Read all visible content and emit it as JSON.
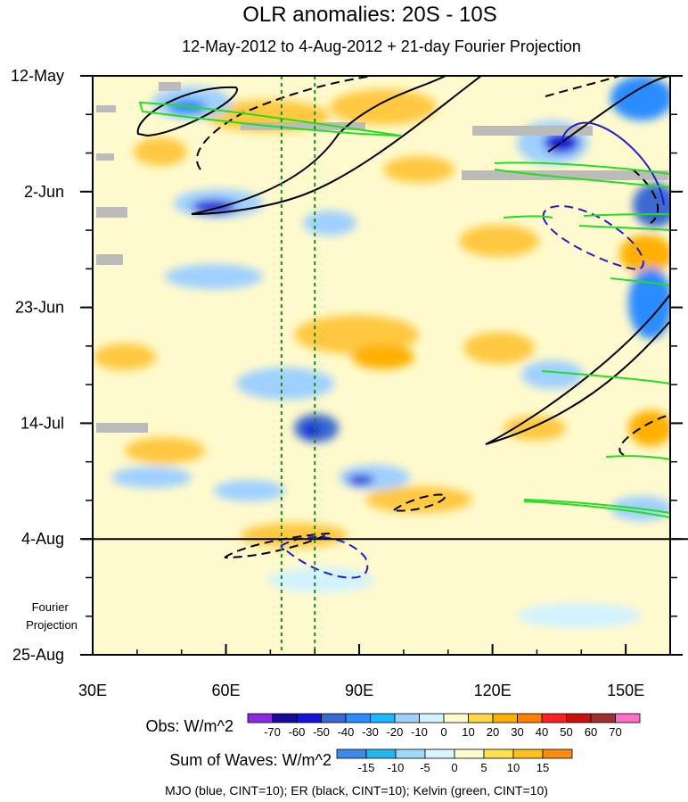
{
  "chart_data": {
    "type": "heatmap",
    "title": "OLR anomalies: 20S - 10S",
    "subtitle": "12-May-2012 to 4-Aug-2012 + 21-day Fourier Projection",
    "x_ticks": [
      {
        "label": "30E",
        "lon": 30
      },
      {
        "label": "60E",
        "lon": 60
      },
      {
        "label": "90E",
        "lon": 90
      },
      {
        "label": "120E",
        "lon": 120
      },
      {
        "label": "150E",
        "lon": 150
      }
    ],
    "xlim": [
      30,
      160
    ],
    "y_ticks": [
      {
        "label": "12-May",
        "day": 0
      },
      {
        "label": "2-Jun",
        "day": 21
      },
      {
        "label": "23-Jun",
        "day": 42
      },
      {
        "label": "14-Jul",
        "day": 63
      },
      {
        "label": "4-Aug",
        "day": 84
      },
      {
        "label": "25-Aug",
        "day": 105
      }
    ],
    "ylim_days": [
      0,
      105
    ],
    "projection_start_day": 84,
    "projection_label": [
      "Fourier",
      "Projection"
    ],
    "reference_lons": [
      72.5,
      80
    ],
    "obs_colorbar": {
      "label": "Obs: W/m^2",
      "levels": [
        "-70",
        "-60",
        "-50",
        "-40",
        "-30",
        "-20",
        "-10",
        "0",
        "10",
        "20",
        "30",
        "40",
        "50",
        "60",
        "70"
      ],
      "colors": [
        "#8a2be2",
        "#1a0a9a",
        "#1414d8",
        "#3a6ad0",
        "#2a8cff",
        "#19b8ff",
        "#9fd0ff",
        "#d2f2ff",
        "#fffacd",
        "#ffd84a",
        "#ffb000",
        "#ff8000",
        "#ff2020",
        "#cc1010",
        "#a03030",
        "#ff6ec7"
      ]
    },
    "waves_colorbar": {
      "label": "Sum of Waves: W/m^2",
      "levels": [
        "-15",
        "-10",
        "-5",
        "0",
        "5",
        "10",
        "15"
      ],
      "colors": [
        "#3b8be8",
        "#25b6f0",
        "#a0d8fa",
        "#d8f4ff",
        "#fffacd",
        "#ffe050",
        "#ffc020",
        "#ff8a10"
      ]
    },
    "caption": "MJO (blue, CINT=10); ER (black, CINT=10); Kelvin (green, CINT=10)",
    "wave_line_colors": {
      "MJO": "#1f1fd0",
      "ER": "#000000",
      "Kelvin": "#22dd22"
    },
    "missing_color": "#bbbbbb"
  }
}
